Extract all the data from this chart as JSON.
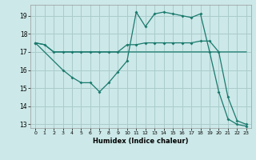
{
  "title": "",
  "xlabel": "Humidex (Indice chaleur)",
  "bg_color": "#cce8e8",
  "grid_color": "#aacccc",
  "line_color": "#1a7a6e",
  "xlim": [
    -0.5,
    23.5
  ],
  "ylim": [
    12.8,
    19.6
  ],
  "yticks": [
    13,
    14,
    15,
    16,
    17,
    18,
    19
  ],
  "xticks": [
    0,
    1,
    2,
    3,
    4,
    5,
    6,
    7,
    8,
    9,
    10,
    11,
    12,
    13,
    14,
    15,
    16,
    17,
    18,
    19,
    20,
    21,
    22,
    23
  ],
  "line1_x": [
    0,
    1,
    2,
    3,
    4,
    5,
    6,
    7,
    8,
    9,
    10,
    11,
    12,
    13,
    14,
    15,
    16,
    17,
    18,
    19,
    20,
    21,
    22,
    23
  ],
  "line1_y": [
    17.5,
    17.4,
    17.0,
    17.0,
    17.0,
    17.0,
    17.0,
    17.0,
    17.0,
    17.0,
    17.0,
    17.0,
    17.0,
    17.0,
    17.0,
    17.0,
    17.0,
    17.0,
    17.0,
    17.0,
    17.0,
    17.0,
    17.0,
    17.0
  ],
  "line2_x": [
    0,
    1,
    2,
    3,
    4,
    5,
    6,
    7,
    8,
    9,
    10,
    11,
    12,
    13,
    14,
    15,
    16,
    17,
    18,
    19,
    20,
    21,
    22,
    23
  ],
  "line2_y": [
    17.5,
    17.4,
    17.0,
    17.0,
    17.0,
    17.0,
    17.0,
    17.0,
    17.0,
    17.0,
    17.4,
    17.4,
    17.5,
    17.5,
    17.5,
    17.5,
    17.5,
    17.5,
    17.6,
    17.6,
    17.0,
    14.5,
    13.2,
    13.0
  ],
  "line3_x": [
    0,
    3,
    4,
    5,
    6,
    7,
    8,
    9,
    10,
    11,
    12,
    13,
    14,
    15,
    16,
    17,
    18,
    19,
    20,
    21,
    22,
    23
  ],
  "line3_y": [
    17.5,
    16.0,
    15.6,
    15.3,
    15.3,
    14.8,
    15.3,
    15.9,
    16.5,
    19.2,
    18.4,
    19.1,
    19.2,
    19.1,
    19.0,
    18.9,
    19.1,
    17.0,
    14.8,
    13.3,
    13.0,
    12.9
  ]
}
